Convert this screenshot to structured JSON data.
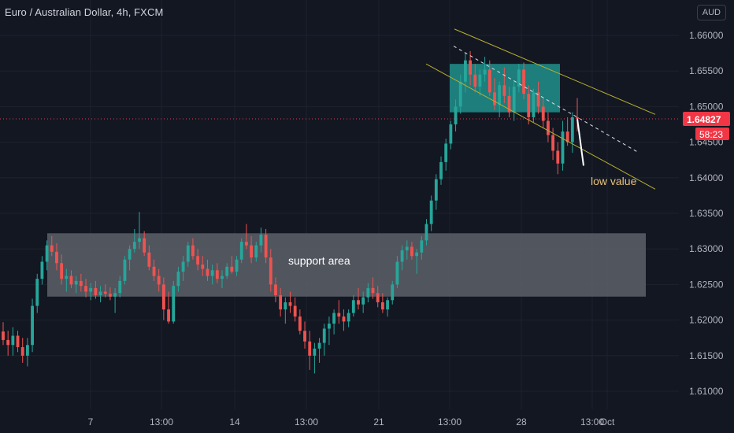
{
  "header": {
    "title": "Euro / Australian Dollar, 4h, FXCM"
  },
  "currency_button": "AUD",
  "colors": {
    "background": "#131722",
    "up": "#26a69a",
    "down": "#ef5350",
    "grid": "#1e222d",
    "axis_text": "#b2b5be",
    "channel": "#b8b02f",
    "support_fill": "#5d6068",
    "supply_fill": "#1f8a86",
    "price_label": "#f23645"
  },
  "chart_data": {
    "type": "candlestick",
    "title": "Euro / Australian Dollar, 4h, FXCM",
    "ylim": [
      1.606,
      1.6655
    ],
    "y_ticks": [
      "1.66000",
      "1.65500",
      "1.65000",
      "1.64500",
      "1.64000",
      "1.63500",
      "1.63000",
      "1.62500",
      "1.62000",
      "1.61500",
      "1.61000"
    ],
    "x_ticks": [
      "7",
      "13:00",
      "14",
      "13:00",
      "21",
      "13:00",
      "28",
      "13:00",
      "Oct"
    ],
    "grid": true,
    "current_price": "1.64827",
    "countdown": "58:23",
    "candles": [
      [
        1.6184,
        1.6197,
        1.6165,
        1.6172
      ],
      [
        1.6172,
        1.6185,
        1.615,
        1.6165
      ],
      [
        1.6165,
        1.619,
        1.615,
        1.6178
      ],
      [
        1.6178,
        1.6185,
        1.6155,
        1.6162
      ],
      [
        1.6162,
        1.6175,
        1.614,
        1.615
      ],
      [
        1.615,
        1.6175,
        1.6135,
        1.6165
      ],
      [
        1.6165,
        1.623,
        1.6155,
        1.622
      ],
      [
        1.622,
        1.6265,
        1.621,
        1.6258
      ],
      [
        1.6258,
        1.629,
        1.625,
        1.6282
      ],
      [
        1.6282,
        1.6312,
        1.627,
        1.6305
      ],
      [
        1.6305,
        1.6318,
        1.629,
        1.6296
      ],
      [
        1.6296,
        1.6308,
        1.627,
        1.628
      ],
      [
        1.628,
        1.6292,
        1.625,
        1.6258
      ],
      [
        1.6258,
        1.6272,
        1.624,
        1.6262
      ],
      [
        1.6262,
        1.627,
        1.6245,
        1.625
      ],
      [
        1.625,
        1.6262,
        1.6238,
        1.6255
      ],
      [
        1.6255,
        1.6265,
        1.624,
        1.6248
      ],
      [
        1.6248,
        1.6258,
        1.6232,
        1.624
      ],
      [
        1.624,
        1.6252,
        1.6228,
        1.6245
      ],
      [
        1.6245,
        1.6255,
        1.623,
        1.6235
      ],
      [
        1.6235,
        1.6248,
        1.6225,
        1.624
      ],
      [
        1.624,
        1.625,
        1.6232,
        1.6237
      ],
      [
        1.6237,
        1.6246,
        1.6228,
        1.6233
      ],
      [
        1.6233,
        1.6245,
        1.621,
        1.6238
      ],
      [
        1.6238,
        1.6262,
        1.6232,
        1.6255
      ],
      [
        1.6255,
        1.629,
        1.625,
        1.6285
      ],
      [
        1.6285,
        1.6305,
        1.627,
        1.63
      ],
      [
        1.63,
        1.6328,
        1.6295,
        1.631
      ],
      [
        1.631,
        1.6352,
        1.63,
        1.6315
      ],
      [
        1.6315,
        1.6325,
        1.629,
        1.6295
      ],
      [
        1.6295,
        1.6305,
        1.627,
        1.6275
      ],
      [
        1.6275,
        1.6285,
        1.6255,
        1.6262
      ],
      [
        1.6262,
        1.6272,
        1.624,
        1.625
      ],
      [
        1.625,
        1.626,
        1.62,
        1.6215
      ],
      [
        1.6215,
        1.624,
        1.6195,
        1.6198
      ],
      [
        1.6198,
        1.6255,
        1.6195,
        1.6248
      ],
      [
        1.6248,
        1.6275,
        1.624,
        1.6268
      ],
      [
        1.6268,
        1.629,
        1.6255,
        1.6282
      ],
      [
        1.6282,
        1.631,
        1.6275,
        1.6305
      ],
      [
        1.6305,
        1.6315,
        1.6285,
        1.629
      ],
      [
        1.629,
        1.63,
        1.627,
        1.6278
      ],
      [
        1.6278,
        1.629,
        1.6262,
        1.6272
      ],
      [
        1.6272,
        1.6285,
        1.6255,
        1.6262
      ],
      [
        1.6262,
        1.6278,
        1.625,
        1.627
      ],
      [
        1.627,
        1.628,
        1.6252,
        1.6258
      ],
      [
        1.6258,
        1.627,
        1.6245,
        1.6262
      ],
      [
        1.6262,
        1.628,
        1.6258,
        1.6275
      ],
      [
        1.6275,
        1.629,
        1.6265,
        1.6268
      ],
      [
        1.6268,
        1.629,
        1.6262,
        1.6285
      ],
      [
        1.6285,
        1.6315,
        1.628,
        1.631
      ],
      [
        1.631,
        1.6335,
        1.63,
        1.6305
      ],
      [
        1.6305,
        1.6318,
        1.628,
        1.6288
      ],
      [
        1.6288,
        1.631,
        1.6282,
        1.6305
      ],
      [
        1.6305,
        1.633,
        1.6295,
        1.632
      ],
      [
        1.632,
        1.6328,
        1.628,
        1.6288
      ],
      [
        1.6288,
        1.63,
        1.624,
        1.625
      ],
      [
        1.625,
        1.626,
        1.6225,
        1.6235
      ],
      [
        1.6235,
        1.6245,
        1.6205,
        1.6215
      ],
      [
        1.6215,
        1.6232,
        1.6195,
        1.6225
      ],
      [
        1.6225,
        1.624,
        1.621,
        1.622
      ],
      [
        1.622,
        1.6232,
        1.6198,
        1.6205
      ],
      [
        1.6205,
        1.6215,
        1.618,
        1.6185
      ],
      [
        1.6185,
        1.6198,
        1.616,
        1.617
      ],
      [
        1.617,
        1.6185,
        1.613,
        1.615
      ],
      [
        1.615,
        1.6168,
        1.6125,
        1.616
      ],
      [
        1.616,
        1.6175,
        1.614,
        1.6168
      ],
      [
        1.6168,
        1.6195,
        1.615,
        1.6188
      ],
      [
        1.6188,
        1.6205,
        1.6165,
        1.6195
      ],
      [
        1.6195,
        1.6215,
        1.618,
        1.621
      ],
      [
        1.621,
        1.6228,
        1.6195,
        1.6205
      ],
      [
        1.6205,
        1.6215,
        1.6185,
        1.6198
      ],
      [
        1.6198,
        1.6215,
        1.619,
        1.621
      ],
      [
        1.621,
        1.6235,
        1.6205,
        1.6228
      ],
      [
        1.6228,
        1.6245,
        1.6215,
        1.6222
      ],
      [
        1.6222,
        1.624,
        1.621,
        1.6232
      ],
      [
        1.6232,
        1.6252,
        1.6225,
        1.6245
      ],
      [
        1.6245,
        1.626,
        1.623,
        1.6238
      ],
      [
        1.6238,
        1.6248,
        1.6218,
        1.6225
      ],
      [
        1.6225,
        1.6238,
        1.621,
        1.6215
      ],
      [
        1.6215,
        1.6232,
        1.6205,
        1.6228
      ],
      [
        1.6228,
        1.6255,
        1.6222,
        1.625
      ],
      [
        1.625,
        1.629,
        1.6245,
        1.6282
      ],
      [
        1.6282,
        1.6305,
        1.627,
        1.6298
      ],
      [
        1.6298,
        1.6312,
        1.6285,
        1.6303
      ],
      [
        1.6303,
        1.631,
        1.6285,
        1.629
      ],
      [
        1.629,
        1.63,
        1.6265,
        1.6295
      ],
      [
        1.6295,
        1.6318,
        1.6285,
        1.6312
      ],
      [
        1.6312,
        1.6342,
        1.6305,
        1.6335
      ],
      [
        1.6335,
        1.6375,
        1.6325,
        1.6368
      ],
      [
        1.6368,
        1.6405,
        1.6355,
        1.6398
      ],
      [
        1.6398,
        1.643,
        1.639,
        1.6422
      ],
      [
        1.6422,
        1.6455,
        1.641,
        1.6448
      ],
      [
        1.6448,
        1.648,
        1.644,
        1.6475
      ],
      [
        1.6475,
        1.651,
        1.6465,
        1.65
      ],
      [
        1.65,
        1.6545,
        1.649,
        1.6535
      ],
      [
        1.6535,
        1.6575,
        1.652,
        1.6565
      ],
      [
        1.6565,
        1.6578,
        1.653,
        1.6545
      ],
      [
        1.6545,
        1.656,
        1.652,
        1.6528
      ],
      [
        1.6528,
        1.6552,
        1.6515,
        1.6545
      ],
      [
        1.6545,
        1.657,
        1.6535,
        1.6552
      ],
      [
        1.6552,
        1.6565,
        1.6515,
        1.652
      ],
      [
        1.652,
        1.654,
        1.6495,
        1.6502
      ],
      [
        1.6502,
        1.6535,
        1.6485,
        1.653
      ],
      [
        1.653,
        1.6555,
        1.6505,
        1.6515
      ],
      [
        1.6515,
        1.6528,
        1.6485,
        1.6492
      ],
      [
        1.6492,
        1.6535,
        1.648,
        1.6528
      ],
      [
        1.6528,
        1.656,
        1.652,
        1.6552
      ],
      [
        1.6552,
        1.6562,
        1.651,
        1.6518
      ],
      [
        1.6518,
        1.653,
        1.6475,
        1.6485
      ],
      [
        1.6485,
        1.6525,
        1.6478,
        1.652
      ],
      [
        1.652,
        1.6535,
        1.649,
        1.65
      ],
      [
        1.65,
        1.6512,
        1.647,
        1.648
      ],
      [
        1.648,
        1.6492,
        1.645,
        1.646
      ],
      [
        1.646,
        1.647,
        1.6425,
        1.6438
      ],
      [
        1.6438,
        1.645,
        1.6405,
        1.642
      ],
      [
        1.642,
        1.648,
        1.641,
        1.6465
      ],
      [
        1.6465,
        1.6485,
        1.6445,
        1.645
      ],
      [
        1.645,
        1.6492,
        1.6435,
        1.6485
      ],
      [
        1.6485,
        1.6512,
        1.6465,
        1.6483
      ]
    ],
    "annotations": {
      "support_label": "support area",
      "low_label": "low value"
    }
  }
}
